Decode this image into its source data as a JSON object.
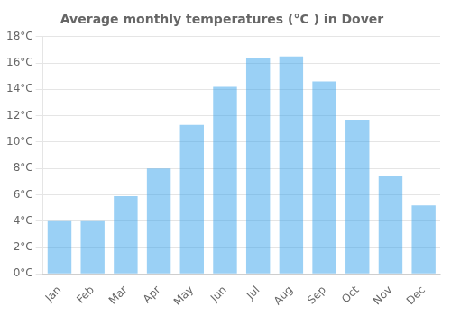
{
  "chart_data": {
    "type": "bar",
    "title": "Average monthly temperatures (°C ) in Dover",
    "categories": [
      "Jan",
      "Feb",
      "Mar",
      "Apr",
      "May",
      "Jun",
      "Jul",
      "Aug",
      "Sep",
      "Oct",
      "Nov",
      "Dec"
    ],
    "values": [
      4.0,
      4.0,
      5.9,
      8.0,
      11.3,
      14.2,
      16.4,
      16.5,
      14.6,
      11.7,
      7.4,
      5.2
    ],
    "ylim": [
      0,
      18
    ],
    "yticks": [
      {
        "value": 0,
        "label": "0°C"
      },
      {
        "value": 2,
        "label": "2°C"
      },
      {
        "value": 4,
        "label": "4°C"
      },
      {
        "value": 6,
        "label": "6°C"
      },
      {
        "value": 8,
        "label": "8°C"
      },
      {
        "value": 10,
        "label": "10°C"
      },
      {
        "value": 12,
        "label": "12°C"
      },
      {
        "value": 14,
        "label": "14°C"
      },
      {
        "value": 16,
        "label": "16°C"
      },
      {
        "value": 18,
        "label": "18°C"
      }
    ],
    "grid": true
  }
}
